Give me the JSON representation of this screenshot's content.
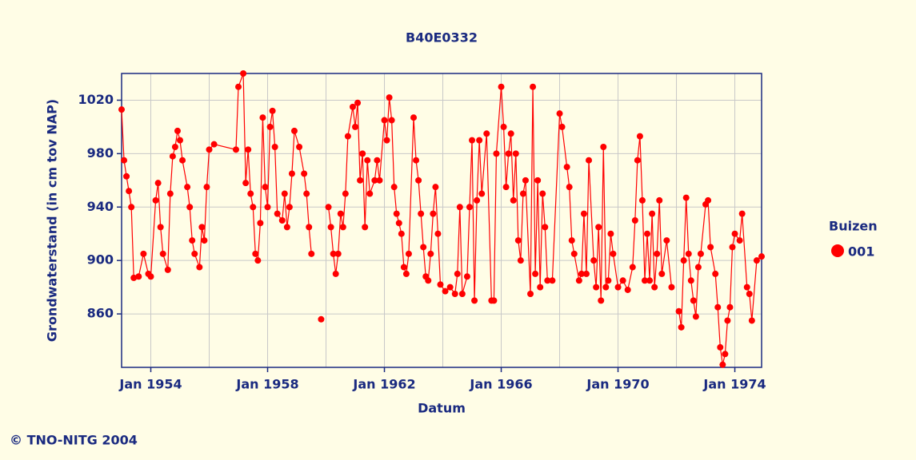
{
  "chart_data": {
    "type": "line",
    "title": "B40E0332",
    "xlabel": "Datum",
    "ylabel": "Grondwaterstand (in cm tov NAP)",
    "legend_title": "Buizen",
    "legend": "right",
    "footer": "© TNO-NITG 2004",
    "grid": true,
    "xlim": [
      "1953-01",
      "1974-12"
    ],
    "xticks": [
      {
        "value": "1954-01",
        "label": "Jan 1954"
      },
      {
        "value": "1958-01",
        "label": "Jan 1958"
      },
      {
        "value": "1962-01",
        "label": "Jan 1962"
      },
      {
        "value": "1966-01",
        "label": "Jan 1966"
      },
      {
        "value": "1970-01",
        "label": "Jan 1970"
      },
      {
        "value": "1974-01",
        "label": "Jan 1974"
      }
    ],
    "xgrid": [
      "1956-01",
      "1960-01",
      "1964-01",
      "1968-01",
      "1972-01"
    ],
    "ylim": [
      820,
      1040
    ],
    "yticks": [
      860,
      900,
      940,
      980,
      1020
    ],
    "x": [
      "1953-01",
      "1953-02",
      "1953-03",
      "1953-04",
      "1953-05",
      "1953-06",
      "1953-08",
      "1953-10",
      "1953-12",
      "1954-01",
      "1954-03",
      "1954-04",
      "1954-05",
      "1954-06",
      "1954-08",
      "1954-09",
      "1954-10",
      "1954-11",
      "1954-12",
      "1955-01",
      "1955-02",
      "1955-04",
      "1955-05",
      "1955-06",
      "1955-07",
      "1955-09",
      "1955-10",
      "1955-11",
      "1955-12",
      "1956-01",
      "1956-03",
      "1956-12",
      "1957-01",
      "1957-03",
      "1957-04",
      "1957-05",
      "1957-06",
      "1957-07",
      "1957-08",
      "1957-09",
      "1957-10",
      "1957-11",
      "1957-12",
      "1958-01",
      "1958-02",
      "1958-03",
      "1958-04",
      "1958-05",
      "1958-07",
      "1958-08",
      "1958-09",
      "1958-10",
      "1958-11",
      "1958-12",
      "1959-02",
      "1959-04",
      "1959-05",
      "1959-06",
      "1959-07",
      "1959-09",
      "1959-11",
      "1960-01",
      "1960-02",
      "1960-03",
      "1960-04",
      "1960-05",
      "1960-06",
      "1960-07",
      "1960-08",
      "1960-09",
      "1960-10",
      "1960-12",
      "1961-01",
      "1961-02",
      "1961-03",
      "1961-04",
      "1961-05",
      "1961-06",
      "1961-07",
      "1961-09",
      "1961-10",
      "1961-11",
      "1962-01",
      "1962-02",
      "1962-03",
      "1962-04",
      "1962-05",
      "1962-06",
      "1962-07",
      "1962-08",
      "1962-09",
      "1962-10",
      "1962-11",
      "1963-01",
      "1963-02",
      "1963-03",
      "1963-04",
      "1963-05",
      "1963-06",
      "1963-07",
      "1963-08",
      "1963-09",
      "1963-10",
      "1963-11",
      "1963-12",
      "1964-02",
      "1964-04",
      "1964-06",
      "1964-07",
      "1964-08",
      "1964-09",
      "1964-11",
      "1964-12",
      "1965-01",
      "1965-02",
      "1965-03",
      "1965-04",
      "1965-05",
      "1965-07",
      "1965-09",
      "1965-10",
      "1965-11",
      "1966-01",
      "1966-02",
      "1966-03",
      "1966-04",
      "1966-05",
      "1966-06",
      "1966-07",
      "1966-08",
      "1966-09",
      "1966-10",
      "1966-11",
      "1967-01",
      "1967-02",
      "1967-03",
      "1967-04",
      "1967-05",
      "1967-06",
      "1967-07",
      "1967-08",
      "1967-10",
      "1968-01",
      "1968-02",
      "1968-04",
      "1968-05",
      "1968-06",
      "1968-07",
      "1968-09",
      "1968-10",
      "1968-11",
      "1968-12",
      "1969-01",
      "1969-03",
      "1969-04",
      "1969-05",
      "1969-06",
      "1969-07",
      "1969-08",
      "1969-09",
      "1969-10",
      "1969-11",
      "1970-01",
      "1970-03",
      "1970-05",
      "1970-07",
      "1970-08",
      "1970-09",
      "1970-10",
      "1970-11",
      "1970-12",
      "1971-01",
      "1971-02",
      "1971-03",
      "1971-04",
      "1971-05",
      "1971-06",
      "1971-07",
      "1971-09",
      "1971-11",
      "1971-12",
      "1972-02",
      "1972-03",
      "1972-04",
      "1972-05",
      "1972-06",
      "1972-07",
      "1972-08",
      "1972-09",
      "1972-10",
      "1972-11",
      "1973-01",
      "1973-02",
      "1973-03",
      "1973-05",
      "1973-06",
      "1973-07",
      "1973-08",
      "1973-09",
      "1973-10",
      "1973-11",
      "1973-12",
      "1974-01",
      "1974-03",
      "1974-04",
      "1974-06",
      "1974-07",
      "1974-08",
      "1974-10",
      "1974-12"
    ],
    "series": [
      {
        "name": "001",
        "color": "#ff0000",
        "values": [
          1013,
          975,
          963,
          952,
          940,
          887,
          888,
          905,
          890,
          888,
          945,
          958,
          925,
          905,
          893,
          950,
          978,
          985,
          997,
          990,
          975,
          955,
          940,
          915,
          905,
          895,
          925,
          915,
          955,
          983,
          987,
          983,
          1030,
          1040,
          958,
          983,
          950,
          940,
          905,
          900,
          928,
          1007,
          955,
          940,
          1000,
          1012,
          985,
          935,
          930,
          950,
          925,
          940,
          965,
          997,
          985,
          965,
          950,
          925,
          905,
          null,
          856,
          null,
          940,
          925,
          905,
          890,
          905,
          935,
          925,
          950,
          993,
          1015,
          1000,
          1018,
          960,
          980,
          925,
          975,
          950,
          960,
          975,
          960,
          1005,
          990,
          1022,
          1005,
          955,
          935,
          928,
          920,
          895,
          890,
          905,
          1007,
          975,
          960,
          935,
          910,
          888,
          885,
          905,
          935,
          955,
          920,
          882,
          877,
          880,
          875,
          890,
          940,
          875,
          888,
          940,
          990,
          870,
          945,
          990,
          950,
          995,
          870,
          870,
          980,
          1030,
          1000,
          955,
          980,
          995,
          945,
          980,
          915,
          900,
          950,
          960,
          875,
          1030,
          890,
          960,
          880,
          950,
          925,
          885,
          885,
          1010,
          1000,
          970,
          955,
          915,
          905,
          885,
          890,
          935,
          890,
          975,
          900,
          880,
          925,
          870,
          985,
          880,
          885,
          920,
          905,
          880,
          885,
          878,
          895,
          930,
          975,
          993,
          945,
          885,
          920,
          885,
          935,
          880,
          905,
          945,
          890,
          915,
          880,
          null,
          862,
          850,
          900,
          947,
          905,
          885,
          870,
          858,
          895,
          905,
          942,
          945,
          910,
          890,
          865,
          835,
          822,
          830,
          855,
          865,
          910,
          920,
          915,
          935,
          880,
          875,
          855,
          900,
          903
        ]
      }
    ]
  }
}
